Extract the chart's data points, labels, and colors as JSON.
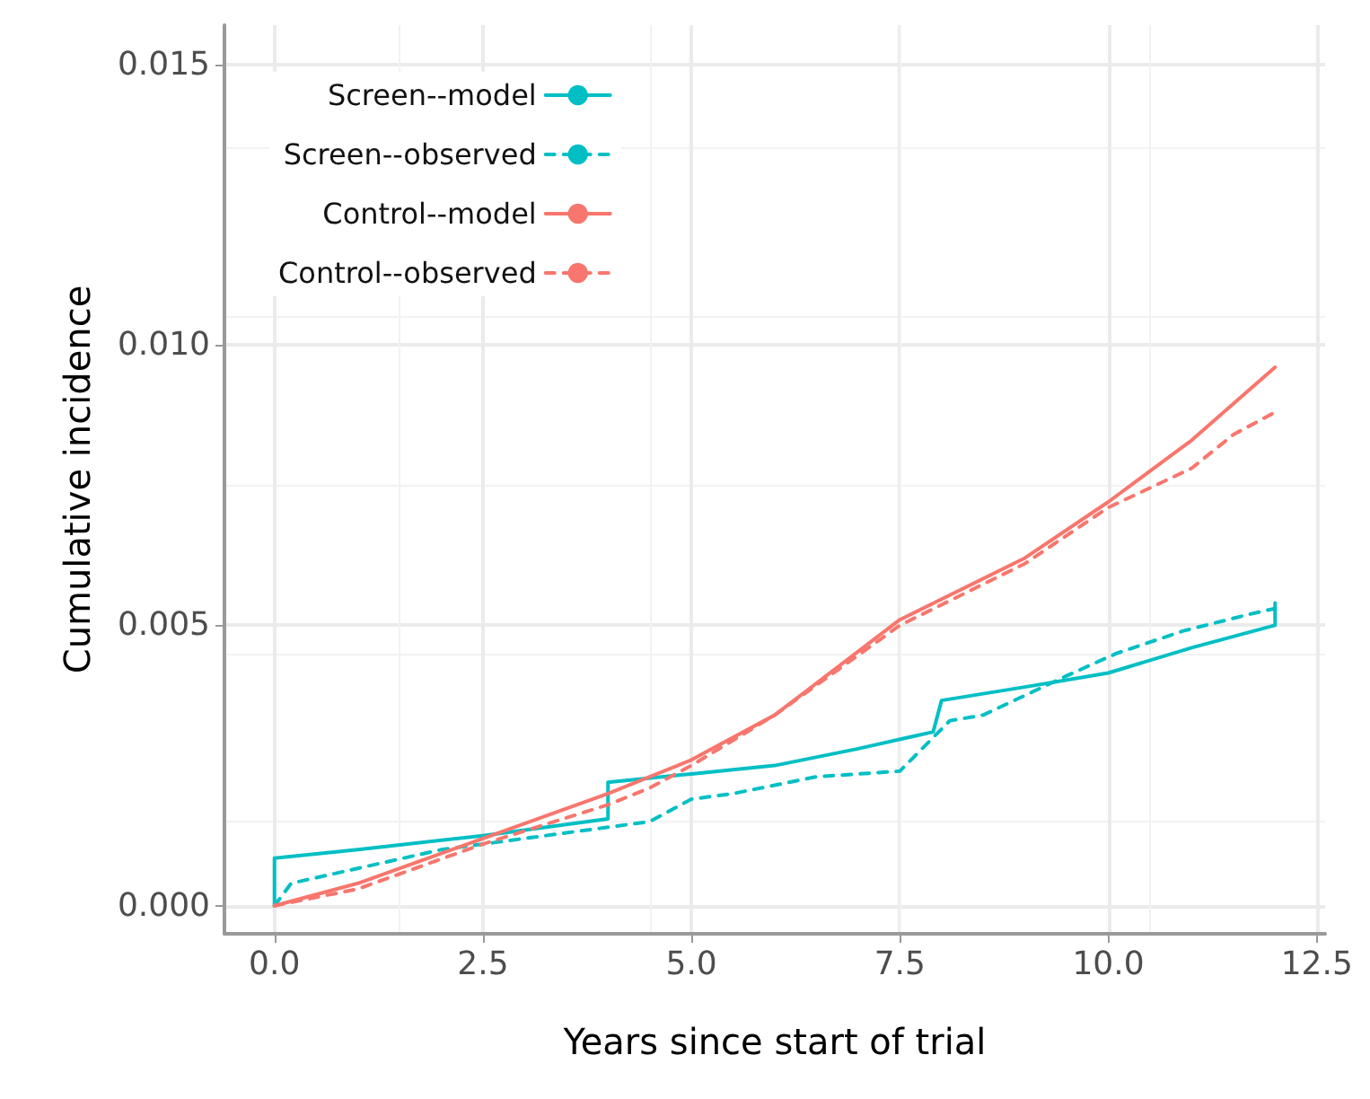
{
  "chart_data": {
    "type": "line",
    "xlabel": "Years since start of trial",
    "ylabel": "Cumulative incidence",
    "xlim": [
      -0.6,
      12.6
    ],
    "xticks": [
      {
        "value": 0,
        "label": "0.0"
      },
      {
        "value": 2.5,
        "label": "2.5"
      },
      {
        "value": 5,
        "label": "5.0"
      },
      {
        "value": 7.5,
        "label": "7.5"
      },
      {
        "value": 10,
        "label": "10.0"
      },
      {
        "value": 12.5,
        "label": "12.5"
      }
    ],
    "ylim": [
      -0.0005,
      0.0157
    ],
    "yticks": [
      {
        "value": 0,
        "label": "0.000"
      },
      {
        "value": 0.005,
        "label": "0.005"
      },
      {
        "value": 0.01,
        "label": "0.010"
      },
      {
        "value": 0.015,
        "label": "0.015"
      }
    ],
    "grid": true,
    "legend": "top left",
    "marker": "none",
    "series": [
      {
        "name": "Screen--model",
        "color": "#00bfc4",
        "line_style": "solid",
        "x": [
          0,
          0,
          1,
          2.5,
          4,
          4,
          5,
          6,
          7,
          7.9,
          8,
          9,
          10,
          11,
          12,
          12
        ],
        "values": [
          0,
          0.00085,
          0.001,
          0.00125,
          0.00155,
          0.0022,
          0.00235,
          0.0025,
          0.0028,
          0.0031,
          0.00366,
          0.0039,
          0.00415,
          0.0046,
          0.005,
          0.0054
        ]
      },
      {
        "name": "Screen--observed",
        "color": "#00bfc4",
        "line_style": "dashed",
        "x": [
          0,
          0.2,
          0.5,
          2,
          3.5,
          4.5,
          5,
          5.5,
          6.5,
          7.5,
          8.1,
          8.5,
          9.5,
          10.1,
          10.9,
          11.7,
          12
        ],
        "values": [
          0,
          0.0004,
          0.0005,
          0.001,
          0.0013,
          0.0015,
          0.0019,
          0.002,
          0.0023,
          0.0024,
          0.0033,
          0.0034,
          0.0041,
          0.0045,
          0.0049,
          0.0052,
          0.0053
        ]
      },
      {
        "name": "Control--model",
        "color": "#f8766d",
        "line_style": "solid",
        "x": [
          0,
          1,
          2.5,
          4,
          5,
          6,
          7.5,
          9,
          10,
          11,
          12
        ],
        "values": [
          0,
          0.0004,
          0.0012,
          0.002,
          0.0026,
          0.0034,
          0.0051,
          0.0062,
          0.0072,
          0.0083,
          0.0096
        ]
      },
      {
        "name": "Control--observed",
        "color": "#f8766d",
        "line_style": "dashed",
        "x": [
          0,
          1,
          2.5,
          4,
          4.5,
          5,
          6,
          7.5,
          9,
          10,
          11,
          11.5,
          12
        ],
        "values": [
          0,
          0.0003,
          0.0011,
          0.0018,
          0.0021,
          0.0025,
          0.0034,
          0.005,
          0.0061,
          0.0071,
          0.0078,
          0.0084,
          0.0088
        ]
      }
    ]
  }
}
